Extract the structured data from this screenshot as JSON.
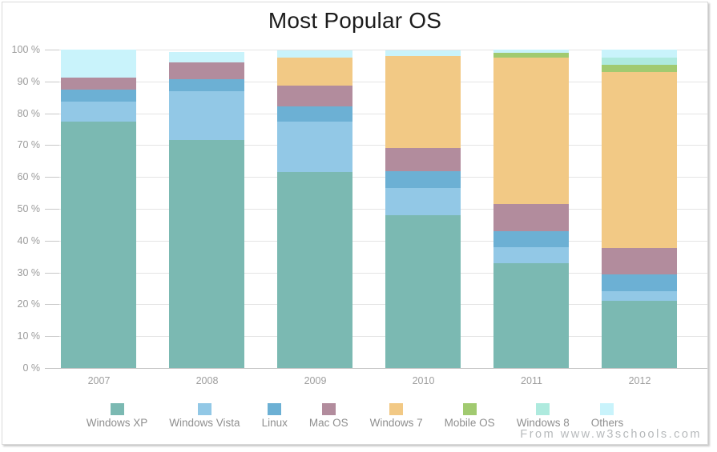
{
  "title": "Most Popular OS",
  "watermark": "From www.w3schools.com",
  "axis": {
    "y_tick_labels": [
      "0 %",
      "10 %",
      "20 %",
      "30 %",
      "40 %",
      "50 %",
      "60 %",
      "70 %",
      "80 %",
      "90 %",
      "100 %"
    ]
  },
  "colors": {
    "grid": "#e4e4e4",
    "axis_baseline": "#c3c3c3",
    "axis_text": "#9b9b9b",
    "legend_text": "#8f8f8f",
    "title_text": "#1c1c1c",
    "watermark_text": "#b6b9bb"
  },
  "chart_data": {
    "type": "bar",
    "stacked": true,
    "title": "Most Popular OS",
    "categories": [
      "2007",
      "2008",
      "2009",
      "2010",
      "2011",
      "2012"
    ],
    "series": [
      {
        "name": "Windows XP",
        "color": "#7bb9b2",
        "values": [
          77.5,
          71.5,
          61.5,
          48.0,
          33.0,
          21.0
        ]
      },
      {
        "name": "Windows Vista",
        "color": "#92c8e6",
        "values": [
          6.3,
          15.4,
          16.0,
          8.6,
          5.0,
          3.0
        ]
      },
      {
        "name": "Linux",
        "color": "#6cb0d4",
        "values": [
          3.6,
          3.7,
          4.6,
          5.1,
          5.0,
          5.5
        ]
      },
      {
        "name": "Mac OS",
        "color": "#b28c9d",
        "values": [
          3.9,
          5.5,
          6.7,
          7.4,
          8.4,
          8.1
        ]
      },
      {
        "name": "Windows 7",
        "color": "#f2c985",
        "values": [
          0,
          0,
          8.8,
          29.0,
          46.1,
          55.3
        ]
      },
      {
        "name": "Mobile OS",
        "color": "#a1ca70",
        "values": [
          0,
          0,
          0,
          0,
          1.5,
          2.3
        ]
      },
      {
        "name": "Windows 8",
        "color": "#aeeade",
        "values": [
          0,
          0,
          0,
          0,
          0,
          2.2
        ]
      },
      {
        "name": "Others",
        "color": "#c9f3fb",
        "values": [
          8.7,
          3.1,
          2.1,
          1.7,
          1.0,
          2.5
        ]
      }
    ],
    "xlabel": "",
    "ylabel": "",
    "ylim": [
      0,
      100
    ],
    "y_tick_step": 10,
    "y_tick_suffix": " %",
    "grid": true,
    "legend_position": "bottom"
  }
}
